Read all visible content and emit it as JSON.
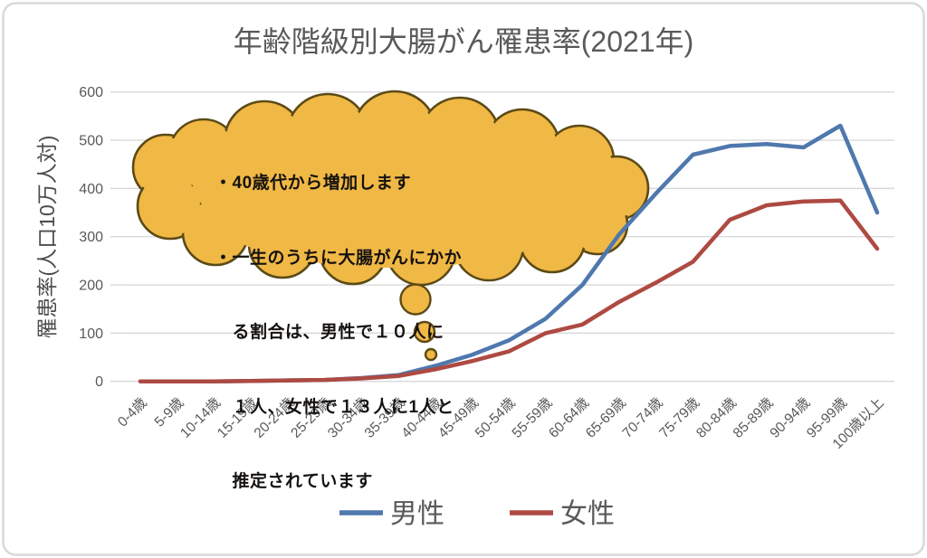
{
  "chart_data": {
    "type": "line",
    "title": "年齢階級別大腸がん罹患率(2021年)",
    "ylabel": "罹患率(人口10万人対)",
    "xlabel": "",
    "ylim": [
      0,
      600
    ],
    "yticks": [
      0,
      100,
      200,
      300,
      400,
      500,
      600
    ],
    "grid": "horizontal",
    "legend_position": "bottom",
    "categories": [
      "0-4歳",
      "5-9歳",
      "10-14歳",
      "15-19歳",
      "20-24歳",
      "25-29歳",
      "30-34歳",
      "35-39歳",
      "40-44歳",
      "45-49歳",
      "50-54歳",
      "55-59歳",
      "60-64歳",
      "65-69歳",
      "70-74歳",
      "75-79歳",
      "80-84歳",
      "85-89歳",
      "90-94歳",
      "95-99歳",
      "100歳以上"
    ],
    "series": [
      {
        "name": "男性",
        "color": "#4f78ae",
        "values": [
          0,
          0,
          0,
          1,
          2,
          3,
          7,
          13,
          32,
          55,
          85,
          130,
          200,
          305,
          390,
          470,
          488,
          492,
          485,
          530,
          350
        ]
      },
      {
        "name": "女性",
        "color": "#ad4a42",
        "values": [
          0,
          0,
          0,
          1,
          2,
          3,
          6,
          11,
          25,
          42,
          62,
          100,
          118,
          165,
          205,
          248,
          335,
          365,
          373,
          375,
          275
        ]
      }
    ]
  },
  "annotation": {
    "bubble_lines": [
      "・40歳代から増加します",
      "・一生のうちに大腸がんにかか",
      "　る割合は、男性で１０人に",
      "　１人、女性で１３人に1人と",
      "　推定されています"
    ]
  },
  "colors": {
    "title_text": "#595959",
    "axis_text": "#595959",
    "gridline": "#d9d9d9",
    "border": "#d9d9d9",
    "bubble_fill": "#f0b845",
    "bubble_outline": "#5c4a16",
    "bubble_text": "#151210"
  }
}
